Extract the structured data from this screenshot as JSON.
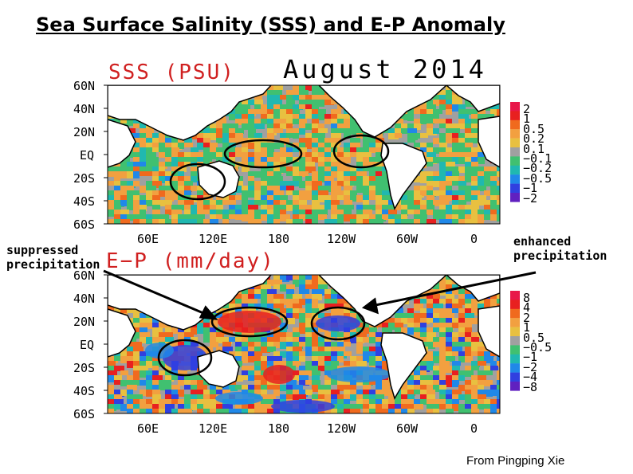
{
  "title": "Sea Surface Salinity (SSS) and E-P Anomaly",
  "month": "August 2014",
  "credit": "From  Pingping Xie",
  "maps": [
    {
      "id": "sss",
      "label": "SSS (PSU)",
      "lat_ticks": [
        "60N",
        "40N",
        "20N",
        "EQ",
        "20S",
        "40S",
        "60S"
      ],
      "lon_ticks": [
        "60E",
        "120E",
        "180",
        "120W",
        "60W",
        "0"
      ],
      "colorbar": {
        "labels": [
          "2",
          "1",
          "0.5",
          "0.2",
          "0.1",
          "−0.1",
          "−0.2",
          "−0.5",
          "−1",
          "−2"
        ],
        "colors": [
          "#e8184a",
          "#e82020",
          "#f06a1e",
          "#f2a040",
          "#e8c040",
          "#a0a0a0",
          "#40c070",
          "#20b8b0",
          "#2088e8",
          "#3040e0",
          "#6020c0"
        ]
      }
    },
    {
      "id": "ep",
      "label": "E−P (mm/day)",
      "lat_ticks": [
        "60N",
        "40N",
        "20N",
        "EQ",
        "20S",
        "40S",
        "60S"
      ],
      "lon_ticks": [
        "60E",
        "120E",
        "180",
        "120W",
        "60W",
        "0"
      ],
      "colorbar": {
        "labels": [
          "8",
          "4",
          "2",
          "1",
          "0.5",
          "−0.5",
          "−1",
          "−2",
          "−4",
          "−8"
        ],
        "colors": [
          "#e8184a",
          "#e82020",
          "#f06a1e",
          "#f2a040",
          "#e8c040",
          "#a0a0a0",
          "#40c070",
          "#20b8b0",
          "#2088e8",
          "#3040e0",
          "#6020c0"
        ]
      }
    }
  ],
  "annotations": {
    "left": [
      "suppressed",
      "precipitation"
    ],
    "right": [
      "enhanced",
      "precipitation"
    ]
  }
}
